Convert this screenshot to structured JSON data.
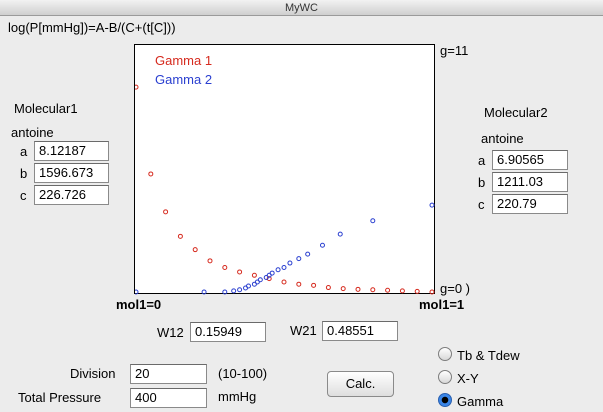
{
  "window": {
    "title": "MyWC"
  },
  "formula": "log(P[mmHg])=A-B/(C+(t[C]))",
  "plot": {
    "legend": [
      {
        "name": "Gamma 1",
        "color": "#d62a1e"
      },
      {
        "name": "Gamma 2",
        "color": "#2a3fd0"
      }
    ],
    "y_top_label": "g=11",
    "y_bottom_label": "g=0 )",
    "x_left_label": "mol1=0",
    "x_right_label": "mol1=1"
  },
  "chart_data": {
    "type": "scatter",
    "xlim": [
      0,
      1
    ],
    "ylim": [
      0,
      11
    ],
    "series": [
      {
        "name": "Gamma 1",
        "color": "#d62a1e",
        "x": [
          0.0,
          0.05,
          0.1,
          0.15,
          0.2,
          0.25,
          0.3,
          0.35,
          0.4,
          0.45,
          0.5,
          0.55,
          0.6,
          0.65,
          0.7,
          0.75,
          0.8,
          0.85,
          0.9,
          0.95,
          1.0
        ],
        "y": [
          9.2,
          5.3,
          3.6,
          2.5,
          1.9,
          1.4,
          1.1,
          0.9,
          0.75,
          0.6,
          0.45,
          0.35,
          0.3,
          0.2,
          0.15,
          0.12,
          0.1,
          0.08,
          0.05,
          0.03,
          0.0
        ]
      },
      {
        "name": "Gamma 2",
        "color": "#2a3fd0",
        "x": [
          0.0,
          0.23,
          0.3,
          0.33,
          0.35,
          0.37,
          0.38,
          0.4,
          0.41,
          0.42,
          0.44,
          0.45,
          0.46,
          0.48,
          0.5,
          0.52,
          0.55,
          0.58,
          0.63,
          0.69,
          0.8,
          1.0
        ],
        "y": [
          0.0,
          0.0,
          0.0,
          0.05,
          0.1,
          0.18,
          0.27,
          0.35,
          0.45,
          0.55,
          0.65,
          0.75,
          0.85,
          1.0,
          1.1,
          1.3,
          1.5,
          1.7,
          2.1,
          2.6,
          3.2,
          3.9
        ]
      }
    ]
  },
  "molecular1": {
    "title": "Molecular1",
    "subtitle": "antoine",
    "a_label": "a",
    "a_value": "8.12187",
    "b_label": "b",
    "b_value": "1596.673",
    "c_label": "c",
    "c_value": "226.726"
  },
  "molecular2": {
    "title": "Molecular2",
    "subtitle": "antoine",
    "a_label": "a",
    "a_value": "6.90565",
    "b_label": "b",
    "b_value": "1211.03",
    "c_label": "c",
    "c_value": "220.79"
  },
  "wilson": {
    "w12_label": "W12",
    "w12_value": "0.15949",
    "w21_label": "W21",
    "w21_value": "0.48551"
  },
  "division": {
    "label": "Division",
    "value": "20",
    "range": "(10-100)"
  },
  "pressure": {
    "label": "Total Pressure",
    "value": "400",
    "unit": "mmHg"
  },
  "calc_label": "Calc.",
  "modes": {
    "options": [
      "Tb & Tdew",
      "X-Y",
      "Gamma"
    ],
    "selected": 2
  }
}
